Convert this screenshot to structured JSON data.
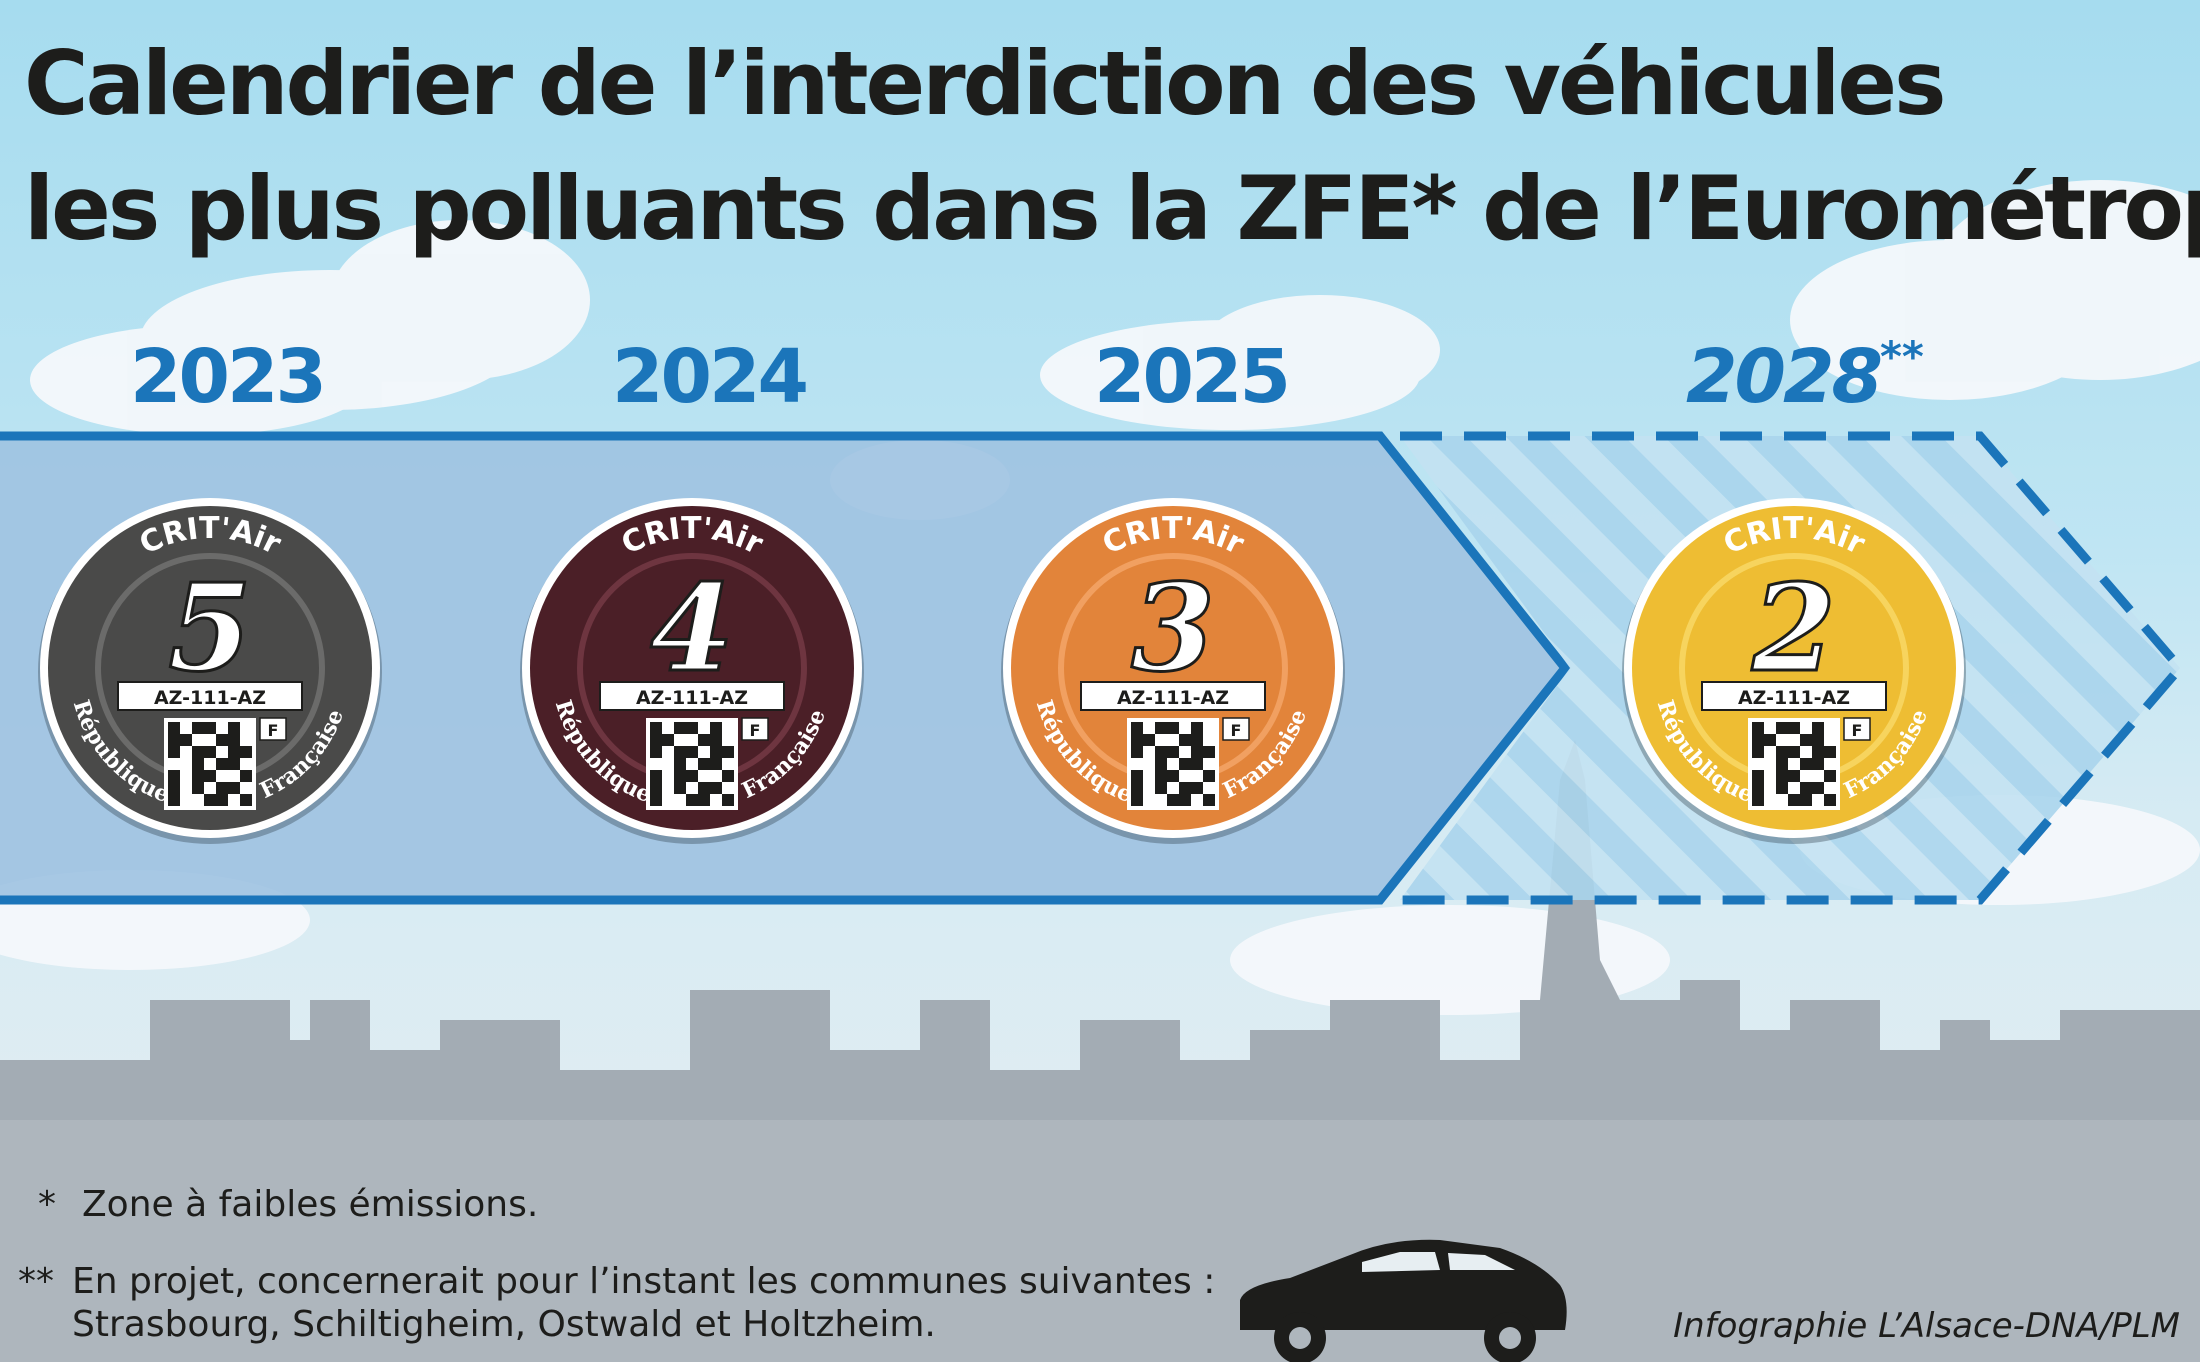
{
  "title": {
    "line1": "Calendrier de l’interdiction des véhicules",
    "line2": "les plus polluants dans la ZFE* de l’Eurométropole"
  },
  "timeline": [
    {
      "year": "2023",
      "suffix": "",
      "crit_label": "CRIT'Air",
      "class_number": "5",
      "color": "#4a4a49",
      "ring": "#6b6b6a",
      "plate": "AZ-111-AZ",
      "country_code": "F",
      "left_text": "République",
      "right_text": "Française",
      "status": "confirmed"
    },
    {
      "year": "2024",
      "suffix": "",
      "crit_label": "CRIT'Air",
      "class_number": "4",
      "color": "#4b1f27",
      "ring": "#6e3540",
      "plate": "AZ-111-AZ",
      "country_code": "F",
      "left_text": "République",
      "right_text": "Française",
      "status": "confirmed"
    },
    {
      "year": "2025",
      "suffix": "",
      "crit_label": "CRIT'Air",
      "class_number": "3",
      "color": "#e2843a",
      "ring": "#f1a061",
      "plate": "AZ-111-AZ",
      "country_code": "F",
      "left_text": "République",
      "right_text": "Française",
      "status": "confirmed"
    },
    {
      "year": "2028",
      "suffix": "**",
      "crit_label": "CRIT'Air",
      "class_number": "2",
      "color": "#eebd33",
      "ring": "#f7d45e",
      "plate": "AZ-111-AZ",
      "country_code": "F",
      "left_text": "République",
      "right_text": "Française",
      "status": "planned"
    }
  ],
  "colors": {
    "accent_blue": "#1b75ba",
    "arrow_fill": "#9fc2e1",
    "sky_top": "#a6dcef",
    "skyline": "#a3acb4"
  },
  "footnotes": {
    "note1_mark": "*",
    "note1_text": "Zone à faibles émissions.",
    "note2_mark": "**",
    "note2_line1": "En projet, concernerait pour l’instant les communes suivantes :",
    "note2_line2": "Strasbourg, Schiltigheim, Ostwald et Holtzheim."
  },
  "credit": "Infographie L’Alsace-DNA/PLM",
  "icons": {
    "car": "car-icon",
    "qr": "qr-code-icon",
    "skyline": "city-skyline-icon"
  }
}
